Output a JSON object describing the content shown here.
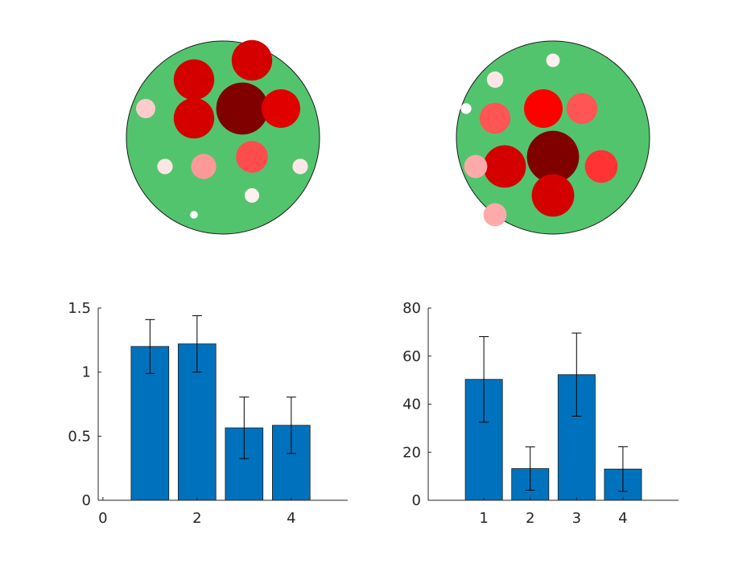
{
  "colors": {
    "dish": "#53c46e",
    "dish_edge": "#1a1a1a",
    "bar": "#0072bd",
    "bar_edge": "#1a1a1a",
    "errorbar": "#000000"
  },
  "chart_data": [
    {
      "type": "scatter",
      "chart_kind": "circle-packing",
      "units": "arbitrary (dish radius = 1)",
      "circles": [
        {
          "x": 0.2,
          "y": 0.3,
          "r": 0.27,
          "color": "#800000"
        },
        {
          "x": -0.3,
          "y": 0.6,
          "r": 0.21,
          "color": "#d40000"
        },
        {
          "x": -0.3,
          "y": 0.2,
          "r": 0.21,
          "color": "#d40000"
        },
        {
          "x": 0.3,
          "y": 0.8,
          "r": 0.21,
          "color": "#d40000"
        },
        {
          "x": 0.6,
          "y": 0.3,
          "r": 0.2,
          "color": "#e00000"
        },
        {
          "x": 0.3,
          "y": -0.2,
          "r": 0.165,
          "color": "#ff4d4d"
        },
        {
          "x": -0.2,
          "y": -0.3,
          "r": 0.13,
          "color": "#ff9999"
        },
        {
          "x": -0.8,
          "y": 0.3,
          "r": 0.1,
          "color": "#ffcccc"
        },
        {
          "x": -0.6,
          "y": -0.3,
          "r": 0.08,
          "color": "#ffe6e6"
        },
        {
          "x": 0.8,
          "y": -0.3,
          "r": 0.08,
          "color": "#ffe6e6"
        },
        {
          "x": 0.3,
          "y": -0.6,
          "r": 0.075,
          "color": "#fff0f0"
        },
        {
          "x": -0.3,
          "y": -0.8,
          "r": 0.04,
          "color": "#ffffff"
        }
      ]
    },
    {
      "type": "scatter",
      "chart_kind": "circle-packing",
      "units": "arbitrary (dish radius = 1)",
      "circles": [
        {
          "x": 0.0,
          "y": -0.2,
          "r": 0.27,
          "color": "#800000"
        },
        {
          "x": -0.5,
          "y": -0.3,
          "r": 0.22,
          "color": "#d40000"
        },
        {
          "x": 0.0,
          "y": -0.6,
          "r": 0.22,
          "color": "#d40000"
        },
        {
          "x": -0.1,
          "y": 0.3,
          "r": 0.2,
          "color": "#ff0000"
        },
        {
          "x": 0.5,
          "y": -0.3,
          "r": 0.17,
          "color": "#ff3333"
        },
        {
          "x": 0.3,
          "y": 0.3,
          "r": 0.16,
          "color": "#ff5555"
        },
        {
          "x": -0.6,
          "y": 0.2,
          "r": 0.16,
          "color": "#ff5555"
        },
        {
          "x": -0.8,
          "y": -0.3,
          "r": 0.12,
          "color": "#ffaaaa"
        },
        {
          "x": -0.6,
          "y": -0.8,
          "r": 0.12,
          "color": "#ffaaaa"
        },
        {
          "x": -0.6,
          "y": 0.6,
          "r": 0.085,
          "color": "#ffe6e6"
        },
        {
          "x": 0.0,
          "y": 0.8,
          "r": 0.07,
          "color": "#fff0f0"
        },
        {
          "x": -0.9,
          "y": 0.3,
          "r": 0.055,
          "color": "#ffffff"
        }
      ]
    },
    {
      "type": "bar",
      "x": [
        1,
        2,
        3,
        4
      ],
      "values": [
        1.2,
        1.22,
        0.565,
        0.585
      ],
      "errors": [
        0.21,
        0.22,
        0.24,
        0.22
      ],
      "xlim": [
        -0.1,
        5.2
      ],
      "ylim": [
        0,
        1.5
      ],
      "xticks": [
        0,
        2,
        4
      ],
      "xtick_labels": [
        "0",
        "2",
        "4"
      ],
      "yticks": [
        0,
        0.5,
        1,
        1.5
      ],
      "ytick_labels": [
        "0",
        "0.5",
        "1",
        "1.5"
      ],
      "grid": false
    },
    {
      "type": "bar",
      "x": [
        1,
        2,
        3,
        4
      ],
      "values": [
        50.3,
        13.2,
        52.3,
        13.0
      ],
      "errors": [
        17.8,
        9.0,
        17.3,
        9.3
      ],
      "xlim": [
        -0.2,
        5.2
      ],
      "ylim": [
        0,
        80
      ],
      "xticks": [
        1,
        2,
        3,
        4
      ],
      "xtick_labels": [
        "1",
        "2",
        "3",
        "4"
      ],
      "yticks": [
        0,
        20,
        40,
        60,
        80
      ],
      "ytick_labels": [
        "0",
        "20",
        "40",
        "60",
        "80"
      ],
      "grid": false
    }
  ]
}
